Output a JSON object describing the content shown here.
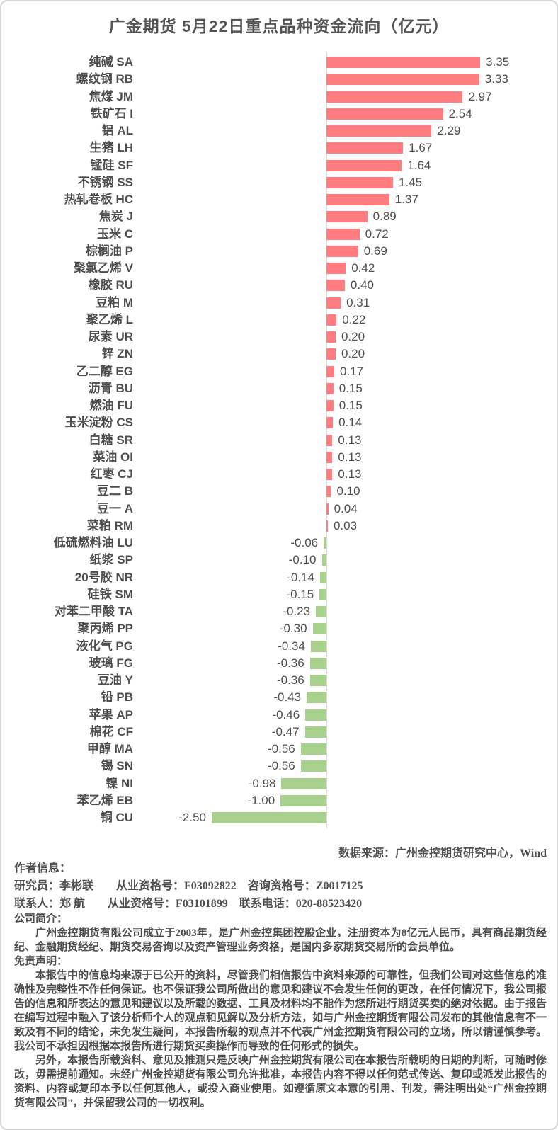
{
  "title": "广金期货 5月22日重点品种资金流向（亿元）",
  "chart_data": {
    "type": "bar",
    "orientation": "horizontal",
    "title": "广金期货 5月22日重点品种资金流向（亿元）",
    "unit": "亿元",
    "categories": [
      "纯碱 SA",
      "螺纹钢 RB",
      "焦煤 JM",
      "铁矿石 I",
      "铝 AL",
      "生猪 LH",
      "锰硅 SF",
      "不锈钢 SS",
      "热轧卷板 HC",
      "焦炭 J",
      "玉米 C",
      "棕榈油 P",
      "聚氯乙烯 V",
      "橡胶 RU",
      "豆粕 M",
      "聚乙烯 L",
      "尿素 UR",
      "锌 ZN",
      "乙二醇 EG",
      "沥青 BU",
      "燃油 FU",
      "玉米淀粉 CS",
      "白糖 SR",
      "菜油 OI",
      "红枣 CJ",
      "豆二 B",
      "豆一 A",
      "菜粕 RM",
      "低硫燃料油 LU",
      "纸浆 SP",
      "20号胶 NR",
      "硅铁 SM",
      "对苯二甲酸 TA",
      "聚丙烯 PP",
      "液化气 PG",
      "玻璃 FG",
      "豆油 Y",
      "铅 PB",
      "苹果 AP",
      "棉花 CF",
      "甲醇 MA",
      "锡 SN",
      "镍 NI",
      "苯乙烯 EB",
      "铜 CU"
    ],
    "values": [
      3.35,
      3.33,
      2.97,
      2.54,
      2.29,
      1.67,
      1.64,
      1.45,
      1.37,
      0.89,
      0.72,
      0.69,
      0.42,
      0.4,
      0.31,
      0.22,
      0.2,
      0.2,
      0.17,
      0.15,
      0.15,
      0.14,
      0.13,
      0.13,
      0.13,
      0.1,
      0.04,
      0.03,
      -0.06,
      -0.1,
      -0.14,
      -0.15,
      -0.23,
      -0.3,
      -0.34,
      -0.36,
      -0.36,
      -0.43,
      -0.46,
      -0.47,
      -0.56,
      -0.56,
      -0.98,
      -1.0,
      -2.5
    ],
    "positive_color": "#FF7C80",
    "negative_color": "#A9D18E",
    "value_labels": true,
    "grid": false,
    "legend": false,
    "zero_axis_line_color": "#d9d9d9",
    "xlim": [
      -2.8,
      4.0
    ]
  },
  "source_note": "数据来源：广州金控期货研究中心，Wind",
  "footer": {
    "author_heading": "作者信息：",
    "researcher_line": "研究员：李彬联　　从业资格号：F03092822　咨询资格号：Z0017125",
    "contact_line": "联系人：郑 航　　从业资格号：F03101899　联系电话：020-88523420",
    "company_heading": "公司简介：",
    "company_text": "广州金控期货有限公司成立于2003年，是广州金控集团控股企业，注册资本为8亿元人民币，具有商品期货经纪、金融期货经纪、期货交易咨询以及资产管理业务资格，是国内多家期货交易所的会员单位。",
    "disclaimer_heading": "免责声明：",
    "disclaimer_p1": "本报告中的信息均来源于已公开的资料，尽管我们相信报告中资料来源的可靠性，但我们公司对这些信息的准确性及完整性不作任何保证。也不保证我公司所做出的意见和建议不会发生任何的更改，在任何情况下，我公司报告的信息和所表达的意见和建议以及所载的数据、工具及材料均不能作为您所进行期货买卖的绝对依据。由于报告在编写过程中融入了该分析师个人的观点和见解以及分析方法，如与广州金控期货有限公司发布的其他信息有不一致及有不同的结论，未免发生疑问，本报告所载的观点并不代表广州金控期货有限公司的立场，所以请谨慎参考。我公司不承担因根据本报告所进行期货买卖操作而导致的任何形式的损失。",
    "disclaimer_p2": "另外，本报告所载资料、意见及推测只是反映广州金控期货有限公司在本报告所载明的日期的判断，可随时修改，毋需提前通知。未经广州金控期货有限公司允许批准，本报告内容不得以任何范式传送、复印或派发此报告的资料、内容或复印本予以任何其他人，或投入商业使用。如遵循原文本意的引用、刊发，需注明出处“广州金控期货有限公司”，并保留我公司的一切权利。"
  }
}
